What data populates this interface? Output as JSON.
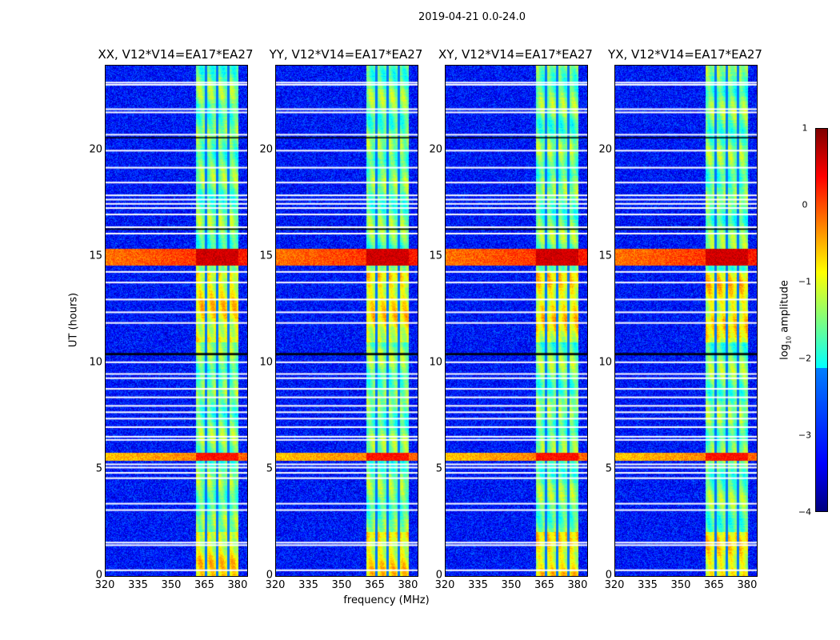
{
  "chart_data": {
    "type": "heatmap",
    "suptitle": "2019-04-21 0.0-24.0",
    "panels": [
      {
        "title": "XX, V12*V14=EA17*EA27",
        "pol": "XX"
      },
      {
        "title": "YY, V12*V14=EA17*EA27",
        "pol": "YY"
      },
      {
        "title": "XY, V12*V14=EA17*EA27",
        "pol": "XY"
      },
      {
        "title": "YX, V12*V14=EA17*EA27",
        "pol": "YX"
      }
    ],
    "xlabel": "frequency (MHz)",
    "ylabel": "UT (hours)",
    "xlim": [
      320,
      384
    ],
    "ylim": [
      0,
      24
    ],
    "xticks": [
      "320",
      "335",
      "350",
      "365",
      "380"
    ],
    "xtick_values": [
      320,
      335,
      350,
      365,
      380
    ],
    "yticks": [
      "0",
      "5",
      "10",
      "15",
      "20"
    ],
    "ytick_values": [
      0,
      5,
      10,
      15,
      20
    ],
    "colorbar": {
      "label": "log",
      "label_sub": "10",
      "label_rest": " amplitude",
      "range": [
        -4,
        1
      ],
      "ticks": [
        "1",
        "0",
        "−1",
        "−2",
        "−3",
        "−4"
      ],
      "tick_values": [
        1,
        0,
        -1,
        -2,
        -3,
        -4
      ],
      "colormap": "jet"
    },
    "background_level": -3.3,
    "rfi_band_mhz": [
      360.5,
      380
    ],
    "rfi_band_level": -1.6,
    "band_gaps_mhz": [
      365.1,
      370.2,
      375.2
    ],
    "events": [
      {
        "ut": [
          14.6,
          15.4
        ],
        "level_band": 0.6,
        "level_broad": -0.2
      },
      {
        "ut": [
          5.45,
          5.8
        ],
        "level_band": 0.3,
        "level_broad": -0.6
      }
    ],
    "flagged_ut": [
      0.27,
      1.45,
      1.57,
      3.1,
      3.4,
      4.6,
      4.85,
      5.1,
      5.25,
      6.4,
      6.55,
      7.0,
      7.4,
      7.7,
      8.0,
      8.4,
      8.8,
      9.3,
      9.5,
      10.05,
      11.9,
      12.4,
      13.0,
      13.8,
      14.3,
      16.1,
      16.4,
      17.0,
      17.3,
      17.5,
      17.7,
      17.9,
      18.5,
      19.2,
      20.0,
      20.75,
      21.8,
      21.95,
      23.1,
      23.2
    ],
    "dark_ut": [
      10.4,
      10.45,
      16.3,
      20.6
    ]
  }
}
